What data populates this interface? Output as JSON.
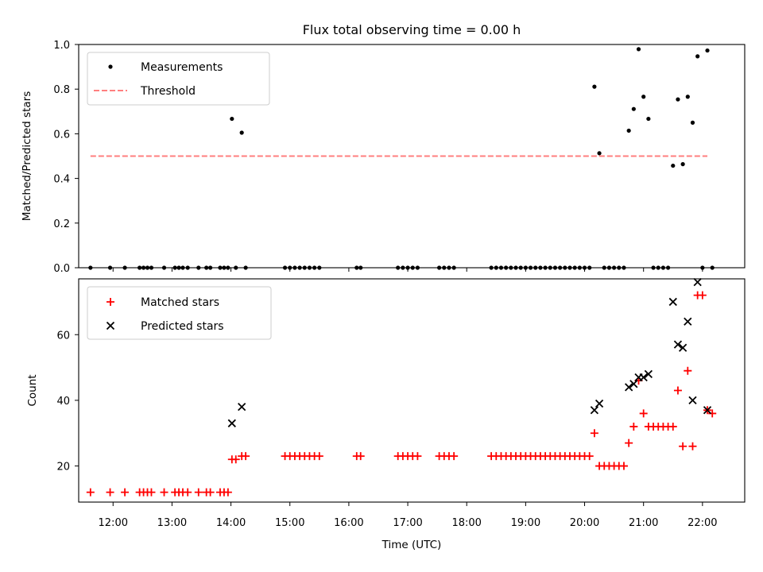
{
  "figure": {
    "title": "Flux total observing time = 0.00 h",
    "xlabel": "Time (UTC)",
    "x_tick_labels": [
      "12:00",
      "13:00",
      "14:00",
      "15:00",
      "16:00",
      "17:00",
      "18:00",
      "19:00",
      "20:00",
      "21:00",
      "22:00"
    ]
  },
  "chart_data": [
    {
      "type": "scatter",
      "panel": "top",
      "ylabel": "Matched/Predicted stars",
      "ylim": [
        0,
        1.0
      ],
      "yticks": [
        0.0,
        0.2,
        0.4,
        0.6,
        0.8,
        1.0
      ],
      "y_tick_labels": [
        "0.0",
        "0.2",
        "0.4",
        "0.6",
        "0.8",
        "1.0"
      ],
      "xlim": [
        "11:25",
        "22:43"
      ],
      "legend_position": "top-left",
      "series": [
        {
          "name": "Measurements",
          "kind": "points",
          "color": "#000000",
          "points": [
            [
              "11:37",
              0
            ],
            [
              "11:57",
              0
            ],
            [
              "12:12",
              0
            ],
            [
              "12:27",
              0
            ],
            [
              "12:31",
              0
            ],
            [
              "12:35",
              0
            ],
            [
              "12:39",
              0
            ],
            [
              "12:52",
              0
            ],
            [
              "13:03",
              0
            ],
            [
              "13:07",
              0
            ],
            [
              "13:11",
              0
            ],
            [
              "13:16",
              0
            ],
            [
              "13:27",
              0
            ],
            [
              "13:35",
              0
            ],
            [
              "13:39",
              0
            ],
            [
              "13:49",
              0
            ],
            [
              "13:53",
              0
            ],
            [
              "13:57",
              0
            ],
            [
              "14:01",
              0.667
            ],
            [
              "14:05",
              0
            ],
            [
              "14:11",
              0.605
            ],
            [
              "14:15",
              0
            ],
            [
              "14:55",
              0
            ],
            [
              "15:00",
              0
            ],
            [
              "15:05",
              0
            ],
            [
              "15:10",
              0
            ],
            [
              "15:15",
              0
            ],
            [
              "15:20",
              0
            ],
            [
              "15:25",
              0
            ],
            [
              "15:30",
              0
            ],
            [
              "16:08",
              0
            ],
            [
              "16:12",
              0
            ],
            [
              "16:50",
              0
            ],
            [
              "16:55",
              0
            ],
            [
              "17:00",
              0
            ],
            [
              "17:05",
              0
            ],
            [
              "17:10",
              0
            ],
            [
              "17:32",
              0
            ],
            [
              "17:37",
              0
            ],
            [
              "17:42",
              0
            ],
            [
              "17:47",
              0
            ],
            [
              "18:25",
              0
            ],
            [
              "18:30",
              0
            ],
            [
              "18:35",
              0
            ],
            [
              "18:40",
              0
            ],
            [
              "18:45",
              0
            ],
            [
              "18:50",
              0
            ],
            [
              "18:55",
              0
            ],
            [
              "19:00",
              0
            ],
            [
              "19:05",
              0
            ],
            [
              "19:10",
              0
            ],
            [
              "19:15",
              0
            ],
            [
              "19:20",
              0
            ],
            [
              "19:25",
              0
            ],
            [
              "19:30",
              0
            ],
            [
              "19:35",
              0
            ],
            [
              "19:40",
              0
            ],
            [
              "19:45",
              0
            ],
            [
              "19:50",
              0
            ],
            [
              "19:55",
              0
            ],
            [
              "20:00",
              0
            ],
            [
              "20:05",
              0
            ],
            [
              "20:10",
              0.811
            ],
            [
              "20:15",
              0.513
            ],
            [
              "20:20",
              0
            ],
            [
              "20:25",
              0
            ],
            [
              "20:30",
              0
            ],
            [
              "20:35",
              0
            ],
            [
              "20:40",
              0
            ],
            [
              "20:45",
              0.614
            ],
            [
              "20:50",
              0.711
            ],
            [
              "20:55",
              0.979
            ],
            [
              "21:00",
              0.766
            ],
            [
              "21:05",
              0.667
            ],
            [
              "21:10",
              0
            ],
            [
              "21:15",
              0
            ],
            [
              "21:20",
              0
            ],
            [
              "21:25",
              0
            ],
            [
              "21:30",
              0.457
            ],
            [
              "21:35",
              0.754
            ],
            [
              "21:40",
              0.464
            ],
            [
              "21:45",
              0.766
            ],
            [
              "21:50",
              0.65
            ],
            [
              "21:55",
              0.947
            ],
            [
              "22:00",
              0
            ],
            [
              "22:05",
              0.973
            ],
            [
              "22:10",
              0
            ]
          ]
        },
        {
          "name": "Threshold",
          "kind": "dashed-line",
          "color": "#ff7f7f",
          "points": [
            [
              "11:37",
              0.5
            ],
            [
              "22:05",
              0.5
            ]
          ]
        }
      ]
    },
    {
      "type": "scatter",
      "panel": "bottom",
      "ylabel": "Count",
      "ylim": [
        9,
        77
      ],
      "yticks": [
        20,
        40,
        60
      ],
      "y_tick_labels": [
        "20",
        "40",
        "60"
      ],
      "xlim": [
        "11:25",
        "22:43"
      ],
      "legend_position": "top-left",
      "series": [
        {
          "name": "Matched stars",
          "marker": "plus",
          "color": "#ff0000",
          "points": [
            [
              "11:37",
              12
            ],
            [
              "11:57",
              12
            ],
            [
              "12:12",
              12
            ],
            [
              "12:27",
              12
            ],
            [
              "12:31",
              12
            ],
            [
              "12:35",
              12
            ],
            [
              "12:39",
              12
            ],
            [
              "12:52",
              12
            ],
            [
              "13:03",
              12
            ],
            [
              "13:07",
              12
            ],
            [
              "13:11",
              12
            ],
            [
              "13:16",
              12
            ],
            [
              "13:27",
              12
            ],
            [
              "13:35",
              12
            ],
            [
              "13:39",
              12
            ],
            [
              "13:49",
              12
            ],
            [
              "13:53",
              12
            ],
            [
              "13:57",
              12
            ],
            [
              "14:01",
              22
            ],
            [
              "14:05",
              22
            ],
            [
              "14:11",
              23
            ],
            [
              "14:15",
              23
            ],
            [
              "14:55",
              23
            ],
            [
              "15:00",
              23
            ],
            [
              "15:05",
              23
            ],
            [
              "15:10",
              23
            ],
            [
              "15:15",
              23
            ],
            [
              "15:20",
              23
            ],
            [
              "15:25",
              23
            ],
            [
              "15:30",
              23
            ],
            [
              "16:08",
              23
            ],
            [
              "16:12",
              23
            ],
            [
              "16:50",
              23
            ],
            [
              "16:55",
              23
            ],
            [
              "17:00",
              23
            ],
            [
              "17:05",
              23
            ],
            [
              "17:10",
              23
            ],
            [
              "17:32",
              23
            ],
            [
              "17:37",
              23
            ],
            [
              "17:42",
              23
            ],
            [
              "17:47",
              23
            ],
            [
              "18:25",
              23
            ],
            [
              "18:30",
              23
            ],
            [
              "18:35",
              23
            ],
            [
              "18:40",
              23
            ],
            [
              "18:45",
              23
            ],
            [
              "18:50",
              23
            ],
            [
              "18:55",
              23
            ],
            [
              "19:00",
              23
            ],
            [
              "19:05",
              23
            ],
            [
              "19:10",
              23
            ],
            [
              "19:15",
              23
            ],
            [
              "19:20",
              23
            ],
            [
              "19:25",
              23
            ],
            [
              "19:30",
              23
            ],
            [
              "19:35",
              23
            ],
            [
              "19:40",
              23
            ],
            [
              "19:45",
              23
            ],
            [
              "19:50",
              23
            ],
            [
              "19:55",
              23
            ],
            [
              "20:00",
              23
            ],
            [
              "20:05",
              23
            ],
            [
              "20:10",
              30
            ],
            [
              "20:15",
              20
            ],
            [
              "20:20",
              20
            ],
            [
              "20:25",
              20
            ],
            [
              "20:30",
              20
            ],
            [
              "20:35",
              20
            ],
            [
              "20:40",
              20
            ],
            [
              "20:45",
              27
            ],
            [
              "20:50",
              32
            ],
            [
              "20:55",
              46
            ],
            [
              "21:00",
              36
            ],
            [
              "21:05",
              32
            ],
            [
              "21:10",
              32
            ],
            [
              "21:15",
              32
            ],
            [
              "21:20",
              32
            ],
            [
              "21:25",
              32
            ],
            [
              "21:30",
              32
            ],
            [
              "21:35",
              43
            ],
            [
              "21:40",
              26
            ],
            [
              "21:45",
              49
            ],
            [
              "21:50",
              26
            ],
            [
              "21:55",
              72
            ],
            [
              "22:00",
              72
            ],
            [
              "22:05",
              37
            ],
            [
              "22:10",
              36
            ]
          ]
        },
        {
          "name": "Predicted stars",
          "marker": "x",
          "color": "#000000",
          "points": [
            [
              "14:01",
              33
            ],
            [
              "14:11",
              38
            ],
            [
              "20:10",
              37
            ],
            [
              "20:15",
              39
            ],
            [
              "20:45",
              44
            ],
            [
              "20:50",
              45
            ],
            [
              "20:55",
              47
            ],
            [
              "21:00",
              47
            ],
            [
              "21:05",
              48
            ],
            [
              "21:30",
              70
            ],
            [
              "21:35",
              57
            ],
            [
              "21:40",
              56
            ],
            [
              "21:45",
              64
            ],
            [
              "21:50",
              40
            ],
            [
              "21:55",
              76
            ],
            [
              "22:05",
              37
            ]
          ]
        }
      ]
    }
  ]
}
